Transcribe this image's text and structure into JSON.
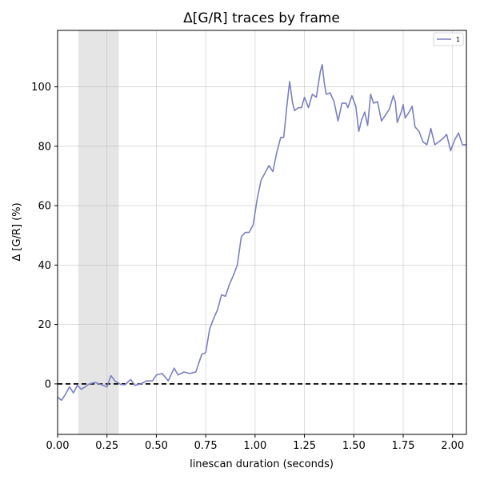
{
  "chart_data": {
    "type": "line",
    "title": "Δ[G/R] traces by frame",
    "xlabel": "linescan duration (seconds)",
    "ylabel": "Δ [G/R] (%)",
    "xlim": [
      0.0,
      2.07
    ],
    "ylim": [
      -17,
      119
    ],
    "xticks": [
      {
        "value": 0.0,
        "label": "0.00"
      },
      {
        "value": 0.25,
        "label": "0.25"
      },
      {
        "value": 0.5,
        "label": "0.50"
      },
      {
        "value": 0.75,
        "label": "0.75"
      },
      {
        "value": 1.0,
        "label": "1.00"
      },
      {
        "value": 1.25,
        "label": "1.25"
      },
      {
        "value": 1.5,
        "label": "1.50"
      },
      {
        "value": 1.75,
        "label": "1.75"
      },
      {
        "value": 2.0,
        "label": "2.00"
      }
    ],
    "yticks": [
      {
        "value": 0,
        "label": "0"
      },
      {
        "value": 20,
        "label": "20"
      },
      {
        "value": 40,
        "label": "40"
      },
      {
        "value": 60,
        "label": "60"
      },
      {
        "value": 80,
        "label": "80"
      },
      {
        "value": 100,
        "label": "100"
      }
    ],
    "grid": true,
    "legend_placement": "top-right",
    "shaded_region": {
      "x_start": 0.105,
      "x_end": 0.31,
      "color": "#e5e5e5"
    },
    "reference_line": {
      "y": 0,
      "style": "dashed",
      "color": "#000000"
    },
    "series": [
      {
        "name": "1",
        "color": "#7b7fc0",
        "points": [
          [
            0.0,
            -4.5
          ],
          [
            0.02,
            -5.5
          ],
          [
            0.04,
            -3.5
          ],
          [
            0.06,
            -1.0
          ],
          [
            0.08,
            -3.0
          ],
          [
            0.1,
            -0.5
          ],
          [
            0.12,
            -1.8
          ],
          [
            0.14,
            -1.0
          ],
          [
            0.16,
            0.0
          ],
          [
            0.19,
            0.5
          ],
          [
            0.22,
            -0.2
          ],
          [
            0.25,
            -1.0
          ],
          [
            0.27,
            2.8
          ],
          [
            0.29,
            1.0
          ],
          [
            0.32,
            -0.2
          ],
          [
            0.34,
            -0.3
          ],
          [
            0.37,
            1.5
          ],
          [
            0.39,
            -0.5
          ],
          [
            0.42,
            0.0
          ],
          [
            0.45,
            1.0
          ],
          [
            0.48,
            1.0
          ],
          [
            0.5,
            3.0
          ],
          [
            0.53,
            3.5
          ],
          [
            0.56,
            1.0
          ],
          [
            0.59,
            5.3
          ],
          [
            0.61,
            3.0
          ],
          [
            0.64,
            4.0
          ],
          [
            0.67,
            3.5
          ],
          [
            0.7,
            4.0
          ],
          [
            0.73,
            10.0
          ],
          [
            0.75,
            10.5
          ],
          [
            0.77,
            18.5
          ],
          [
            0.79,
            22.0
          ],
          [
            0.81,
            25.0
          ],
          [
            0.83,
            30.0
          ],
          [
            0.85,
            29.5
          ],
          [
            0.87,
            33.5
          ],
          [
            0.89,
            36.5
          ],
          [
            0.91,
            40.0
          ],
          [
            0.93,
            49.5
          ],
          [
            0.95,
            51.0
          ],
          [
            0.97,
            51.0
          ],
          [
            0.99,
            53.5
          ],
          [
            1.01,
            62.0
          ],
          [
            1.03,
            68.5
          ],
          [
            1.05,
            71.0
          ],
          [
            1.07,
            73.5
          ],
          [
            1.09,
            71.5
          ],
          [
            1.11,
            78.0
          ],
          [
            1.13,
            83.0
          ],
          [
            1.145,
            83.0
          ],
          [
            1.16,
            93.0
          ],
          [
            1.175,
            101.8
          ],
          [
            1.19,
            94.5
          ],
          [
            1.2,
            92.0
          ],
          [
            1.22,
            93.0
          ],
          [
            1.235,
            93.0
          ],
          [
            1.25,
            96.5
          ],
          [
            1.27,
            93.0
          ],
          [
            1.29,
            97.5
          ],
          [
            1.31,
            96.5
          ],
          [
            1.33,
            105.0
          ],
          [
            1.34,
            107.5
          ],
          [
            1.35,
            101.5
          ],
          [
            1.36,
            97.5
          ],
          [
            1.38,
            98.0
          ],
          [
            1.4,
            95.0
          ],
          [
            1.42,
            88.5
          ],
          [
            1.44,
            94.5
          ],
          [
            1.46,
            94.5
          ],
          [
            1.47,
            93.0
          ],
          [
            1.49,
            97.0
          ],
          [
            1.51,
            93.5
          ],
          [
            1.525,
            85.0
          ],
          [
            1.54,
            89.0
          ],
          [
            1.555,
            91.5
          ],
          [
            1.57,
            87.0
          ],
          [
            1.585,
            97.5
          ],
          [
            1.6,
            94.5
          ],
          [
            1.62,
            95.0
          ],
          [
            1.64,
            88.5
          ],
          [
            1.66,
            90.5
          ],
          [
            1.68,
            92.5
          ],
          [
            1.7,
            97.0
          ],
          [
            1.71,
            95.0
          ],
          [
            1.72,
            88.0
          ],
          [
            1.74,
            91.5
          ],
          [
            1.75,
            94.0
          ],
          [
            1.76,
            89.5
          ],
          [
            1.78,
            91.5
          ],
          [
            1.795,
            93.5
          ],
          [
            1.81,
            86.5
          ],
          [
            1.83,
            85.0
          ],
          [
            1.85,
            81.5
          ],
          [
            1.87,
            80.5
          ],
          [
            1.89,
            86.0
          ],
          [
            1.91,
            80.5
          ],
          [
            1.93,
            81.5
          ],
          [
            1.95,
            82.5
          ],
          [
            1.97,
            84.0
          ],
          [
            1.99,
            78.5
          ],
          [
            2.01,
            82.0
          ],
          [
            2.03,
            84.5
          ],
          [
            2.05,
            80.5
          ],
          [
            2.07,
            80.5
          ]
        ]
      }
    ]
  }
}
